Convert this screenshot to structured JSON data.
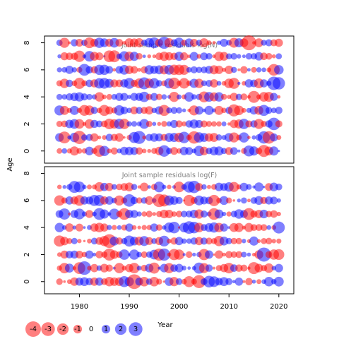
{
  "chart_data": {
    "type": "scatter",
    "subtype": "bubble-residuals",
    "ylabel": "Age",
    "xlabel": "Year",
    "x_ticks": [
      1980,
      1990,
      2000,
      2010,
      2020
    ],
    "y_ticks": [
      0,
      2,
      4,
      6,
      8
    ],
    "xlim": [
      1973,
      2023
    ],
    "ylim": [
      -0.9,
      8.5
    ],
    "grid": false,
    "years": [
      1976,
      2020
    ],
    "ages": [
      0,
      8
    ],
    "colors": {
      "negative": "#FF0000",
      "positive": "#0000FF",
      "opacity": 0.5
    },
    "panels": [
      {
        "title": "Joint sample residuals log(N)",
        "ages": [
          0,
          1,
          2,
          3,
          4,
          5,
          6,
          7,
          8
        ]
      },
      {
        "title": "Joint sample residuals log(F)",
        "ages": [
          0,
          1,
          2,
          3,
          4,
          5,
          6,
          7
        ]
      }
    ],
    "legend": {
      "position": "bottom-left",
      "values": [
        -4,
        -3,
        -2,
        -1,
        0,
        1,
        2,
        3
      ],
      "labels": [
        "-4",
        "-3",
        "-2",
        "-1",
        "0",
        "1",
        "2",
        "3"
      ]
    }
  }
}
